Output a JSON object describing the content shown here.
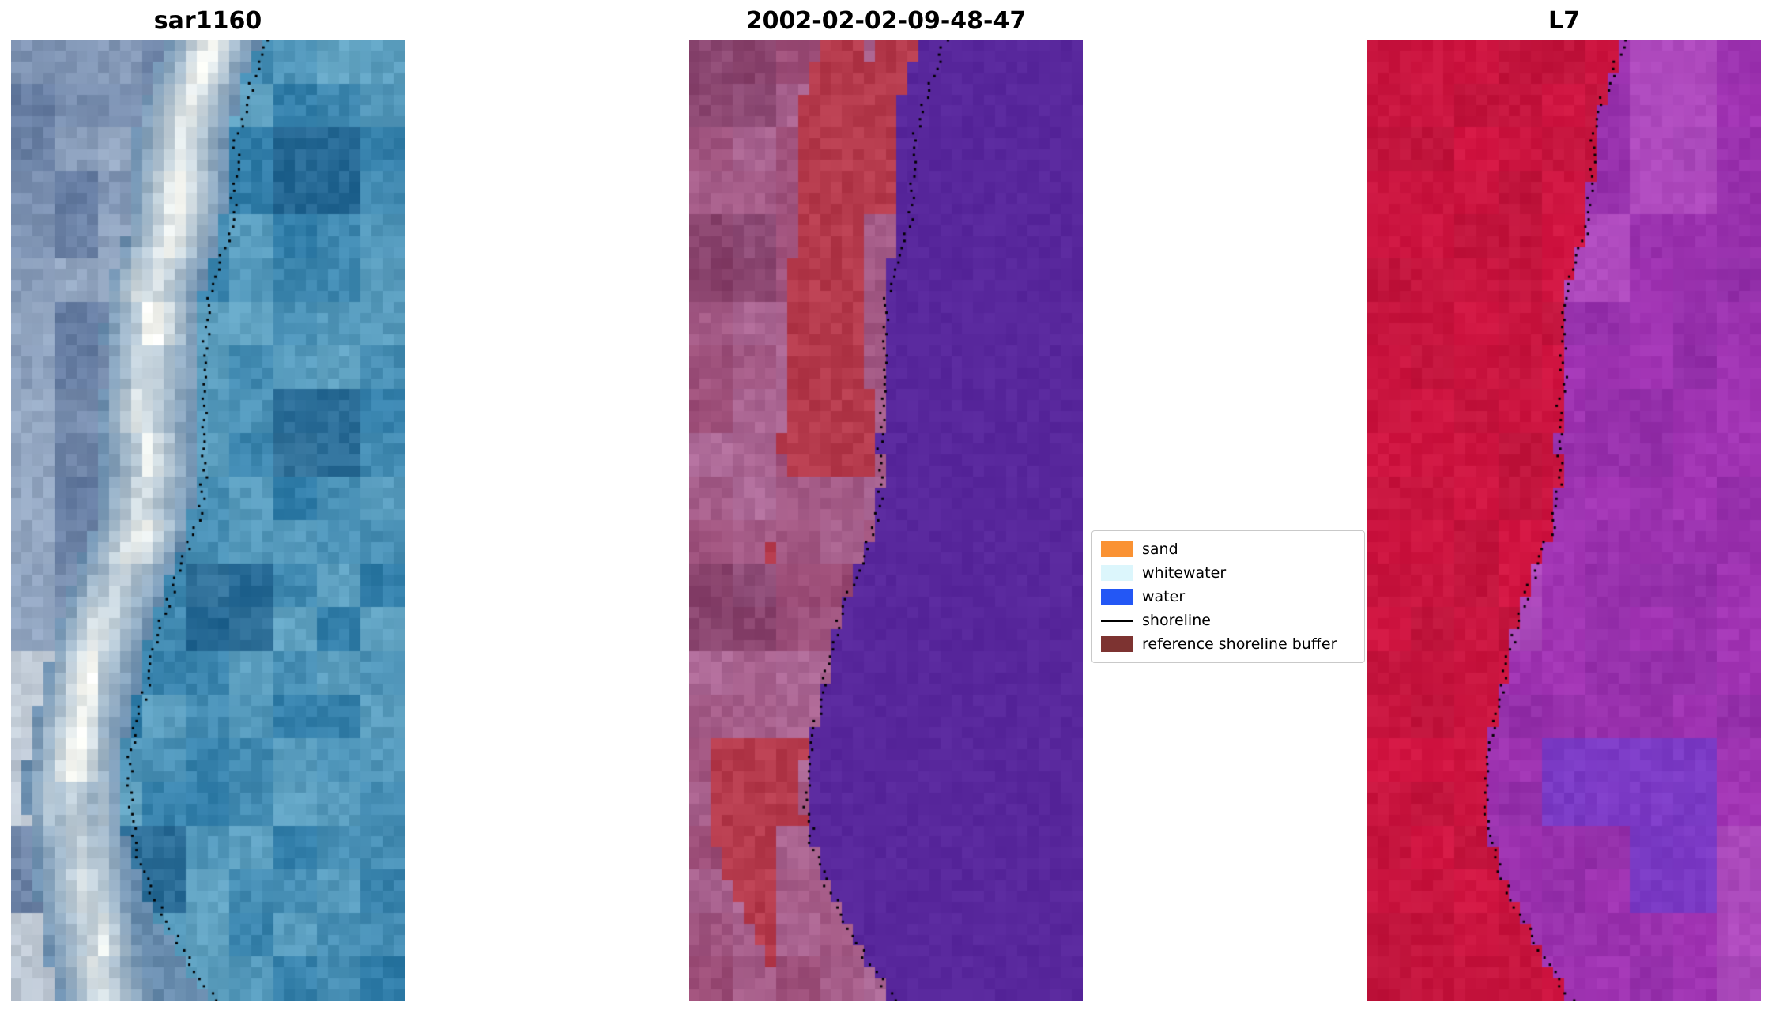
{
  "chart_data": {
    "type": "image",
    "panels": [
      {
        "title": "sar1160",
        "kind": "sar",
        "seed": 11,
        "palette": {
          "water": "#2f7ca8",
          "waterLight": "#69a9c6",
          "waterDark": "#1f5e8a",
          "land": "#62799f",
          "landLight": "#a3b5cc",
          "white": "#f6f7f2"
        }
      },
      {
        "title": "2002-02-02-09-48-47",
        "kind": "classified",
        "seed": 23,
        "palette": {
          "sea": "#58279c",
          "red": "#b53a4c",
          "mauve": "#9a4a74",
          "mauveLight": "#b06f9d",
          "mauveDark": "#7b3a63"
        }
      },
      {
        "title": "L7",
        "kind": "l7",
        "seed": 37,
        "palette": {
          "red": "#d31542",
          "redDark": "#b21337",
          "purple": "#a335b5",
          "purpleDark": "#8a2ba2",
          "purpleLight": "#bc5fc8",
          "indigo": "#6e3ecf"
        }
      }
    ],
    "shoreline_points": [
      [
        0.0,
        0.655
      ],
      [
        0.03,
        0.625
      ],
      [
        0.06,
        0.6
      ],
      [
        0.1,
        0.575
      ],
      [
        0.14,
        0.57
      ],
      [
        0.18,
        0.565
      ],
      [
        0.21,
        0.55
      ],
      [
        0.24,
        0.52
      ],
      [
        0.27,
        0.5
      ],
      [
        0.31,
        0.495
      ],
      [
        0.35,
        0.5
      ],
      [
        0.38,
        0.49
      ],
      [
        0.42,
        0.485
      ],
      [
        0.46,
        0.49
      ],
      [
        0.5,
        0.475
      ],
      [
        0.53,
        0.45
      ],
      [
        0.56,
        0.42
      ],
      [
        0.6,
        0.385
      ],
      [
        0.64,
        0.36
      ],
      [
        0.68,
        0.34
      ],
      [
        0.72,
        0.315
      ],
      [
        0.76,
        0.3
      ],
      [
        0.8,
        0.3
      ],
      [
        0.84,
        0.315
      ],
      [
        0.88,
        0.35
      ],
      [
        0.92,
        0.4
      ],
      [
        0.96,
        0.455
      ],
      [
        1.0,
        0.52
      ]
    ],
    "legend": {
      "entries": [
        {
          "label": "sand",
          "color": "#fa9233",
          "kind": "patch"
        },
        {
          "label": "whitewater",
          "color": "#dcf6fc",
          "kind": "patch"
        },
        {
          "label": "water",
          "color": "#2357f5",
          "kind": "patch"
        },
        {
          "label": "shoreline",
          "color": "#000000",
          "kind": "line"
        },
        {
          "label": "reference shoreline buffer",
          "color": "#7d3331",
          "kind": "patch"
        }
      ]
    }
  }
}
